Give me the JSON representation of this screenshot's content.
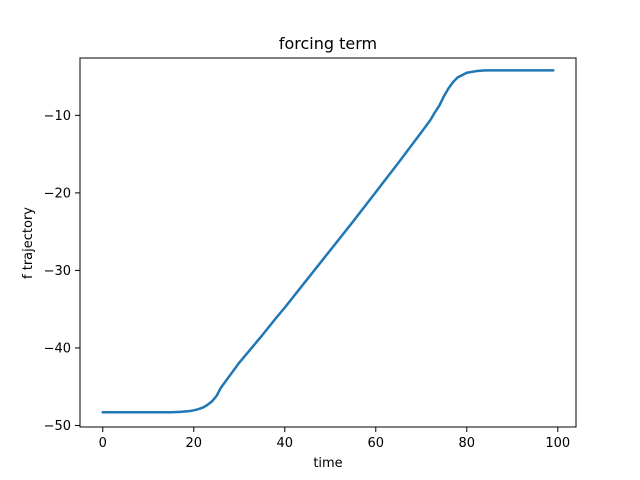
{
  "chart_data": {
    "type": "line",
    "title": "forcing term",
    "xlabel": "time",
    "ylabel": "f trajectory",
    "xlim": [
      -5,
      104
    ],
    "ylim": [
      -50.2,
      -2.6
    ],
    "xticks": [
      0,
      20,
      40,
      60,
      80,
      100
    ],
    "yticks": [
      -50,
      -40,
      -30,
      -20,
      -10
    ],
    "ytick_labels": [
      "−50",
      "−40",
      "−30",
      "−20",
      "−10"
    ],
    "grid": false,
    "colors": {
      "line": "#1f77b4",
      "axes": "#000000",
      "background": "#ffffff"
    },
    "series": [
      {
        "x": [
          0,
          5,
          10,
          15,
          17,
          19,
          20,
          21,
          22,
          23,
          24,
          25,
          26,
          27,
          28,
          30,
          32,
          35,
          38,
          40,
          45,
          50,
          55,
          60,
          65,
          70,
          72,
          73,
          74,
          75,
          76,
          77,
          78,
          80,
          82,
          84,
          86,
          90,
          95,
          99
        ],
        "y": [
          -48.3,
          -48.3,
          -48.3,
          -48.3,
          -48.25,
          -48.15,
          -48.05,
          -47.9,
          -47.7,
          -47.35,
          -46.9,
          -46.2,
          -45.1,
          -44.3,
          -43.5,
          -41.9,
          -40.5,
          -38.4,
          -36.2,
          -34.8,
          -31.1,
          -27.4,
          -23.7,
          -19.9,
          -16.1,
          -12.2,
          -10.6,
          -9.6,
          -8.7,
          -7.5,
          -6.5,
          -5.7,
          -5.1,
          -4.5,
          -4.3,
          -4.2,
          -4.2,
          -4.2,
          -4.2,
          -4.2
        ]
      }
    ]
  }
}
